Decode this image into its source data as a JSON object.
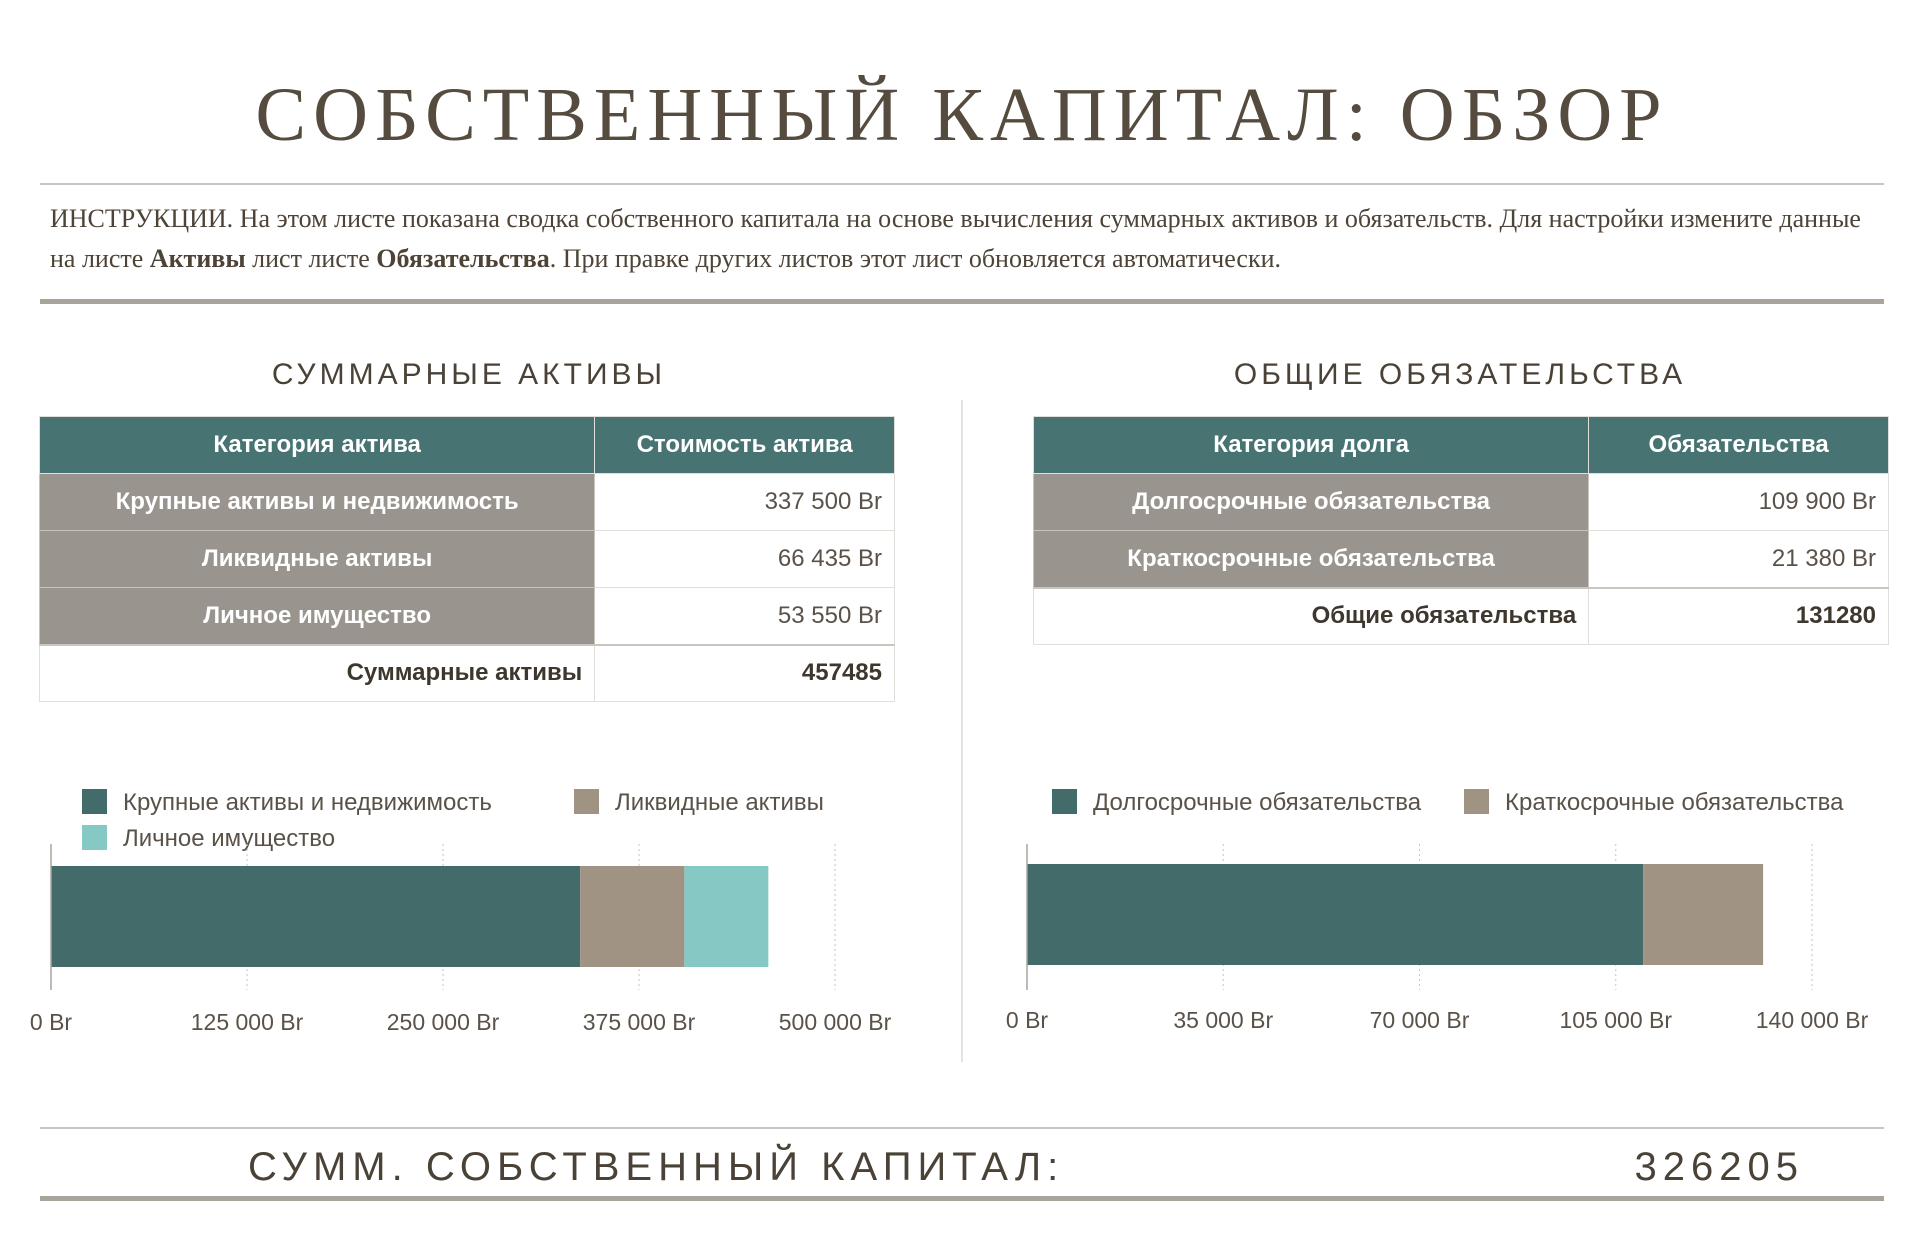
{
  "title": "СОБСТВЕННЫЙ КАПИТАЛ: ОБЗОР",
  "instructions": {
    "lead": "ИНСТРУКЦИИ. На этом листе показана сводка собственного капитала на основе вычисления суммарных активов и обязательств. Для настройки измените данные на листе ",
    "assets_sheet": "Активы",
    "middle": " лист листе ",
    "liabilities_sheet": "Обязательства",
    "tail": ". При правке других листов этот лист обновляется автоматически."
  },
  "assets": {
    "section_title": "СУММАРНЫЕ АКТИВЫ",
    "col_category": "Категория актива",
    "col_value": "Стоимость актива",
    "rows": [
      {
        "category": "Крупные активы и недвижимость",
        "value": "337 500 Br"
      },
      {
        "category": "Ликвидные активы",
        "value": "66 435 Br"
      },
      {
        "category": "Личное имущество",
        "value": "53 550 Br"
      }
    ],
    "total_label": "Суммарные активы",
    "total_value": "457485"
  },
  "liabilities": {
    "section_title": "ОБЩИЕ ОБЯЗАТЕЛЬСТВА",
    "col_category": "Категория долга",
    "col_value": "Обязательства",
    "rows": [
      {
        "category": "Долгосрочные обязательства",
        "value": "109 900 Br"
      },
      {
        "category": "Краткосрочные обязательства",
        "value": "21 380 Br"
      }
    ],
    "total_label": "Общие обязательства",
    "total_value": "131280"
  },
  "chart_data": [
    {
      "type": "bar",
      "orientation": "horizontal",
      "stacked": true,
      "categories": [
        ""
      ],
      "series": [
        {
          "name": "Крупные активы и недвижимость",
          "values": [
            337500
          ],
          "color": "#426b69"
        },
        {
          "name": "Ликвидные активы",
          "values": [
            66435
          ],
          "color": "#a09383"
        },
        {
          "name": "Личное имущество",
          "values": [
            53550
          ],
          "color": "#85c8c4"
        }
      ],
      "xlim": [
        0,
        500000
      ],
      "xticks": [
        "0 Br",
        "125 000 Br",
        "250 000 Br",
        "375 000 Br",
        "500 000 Br"
      ],
      "grid": true,
      "legend": "top"
    },
    {
      "type": "bar",
      "orientation": "horizontal",
      "stacked": true,
      "categories": [
        ""
      ],
      "series": [
        {
          "name": "Долгосрочные обязательства",
          "values": [
            109900
          ],
          "color": "#426b69"
        },
        {
          "name": "Краткосрочные обязательства",
          "values": [
            21380
          ],
          "color": "#a09383"
        }
      ],
      "xlim": [
        0,
        140000
      ],
      "xticks": [
        "0 Br",
        "35 000 Br",
        "70 000 Br",
        "105 000 Br",
        "140 000 Br"
      ],
      "grid": true,
      "legend": "top"
    }
  ],
  "equity": {
    "label": "СУММ. СОБСТВЕННЫЙ КАПИТАЛ:",
    "value": "326205"
  }
}
